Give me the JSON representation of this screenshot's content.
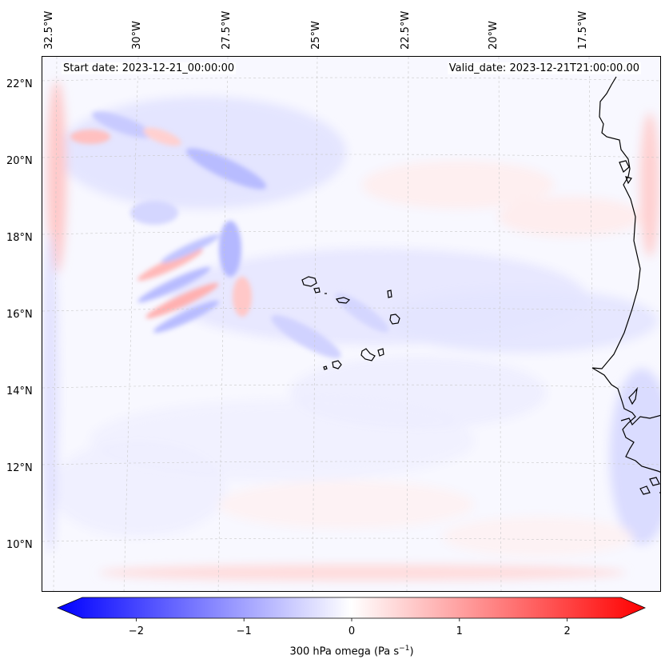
{
  "map": {
    "start_date": "Start date: 2023-12-21_00:00:00",
    "valid_date": "Valid_date: 2023-12-21T21:00:00.00",
    "lon_labels": [
      "32.5°W",
      "30°W",
      "27.5°W",
      "25°W",
      "22.5°W",
      "20°W",
      "17.5°W"
    ],
    "lat_labels": [
      "22°N",
      "20°N",
      "18°N",
      "16°N",
      "14°N",
      "12°N",
      "10°N"
    ],
    "field": "300 hPa omega",
    "coastline_color": "#000000",
    "negative_color": "#0000ff",
    "positive_color": "#ff0000"
  },
  "colorbar": {
    "ticks": [
      "−2",
      "−1",
      "0",
      "1",
      "2"
    ],
    "tick_values": [
      -2,
      -1,
      0,
      1,
      2
    ],
    "range": [
      -2.5,
      2.5
    ],
    "label_prefix": "300 hPa omega (Pa s",
    "label_exponent": "−1",
    "label_suffix": ")"
  }
}
